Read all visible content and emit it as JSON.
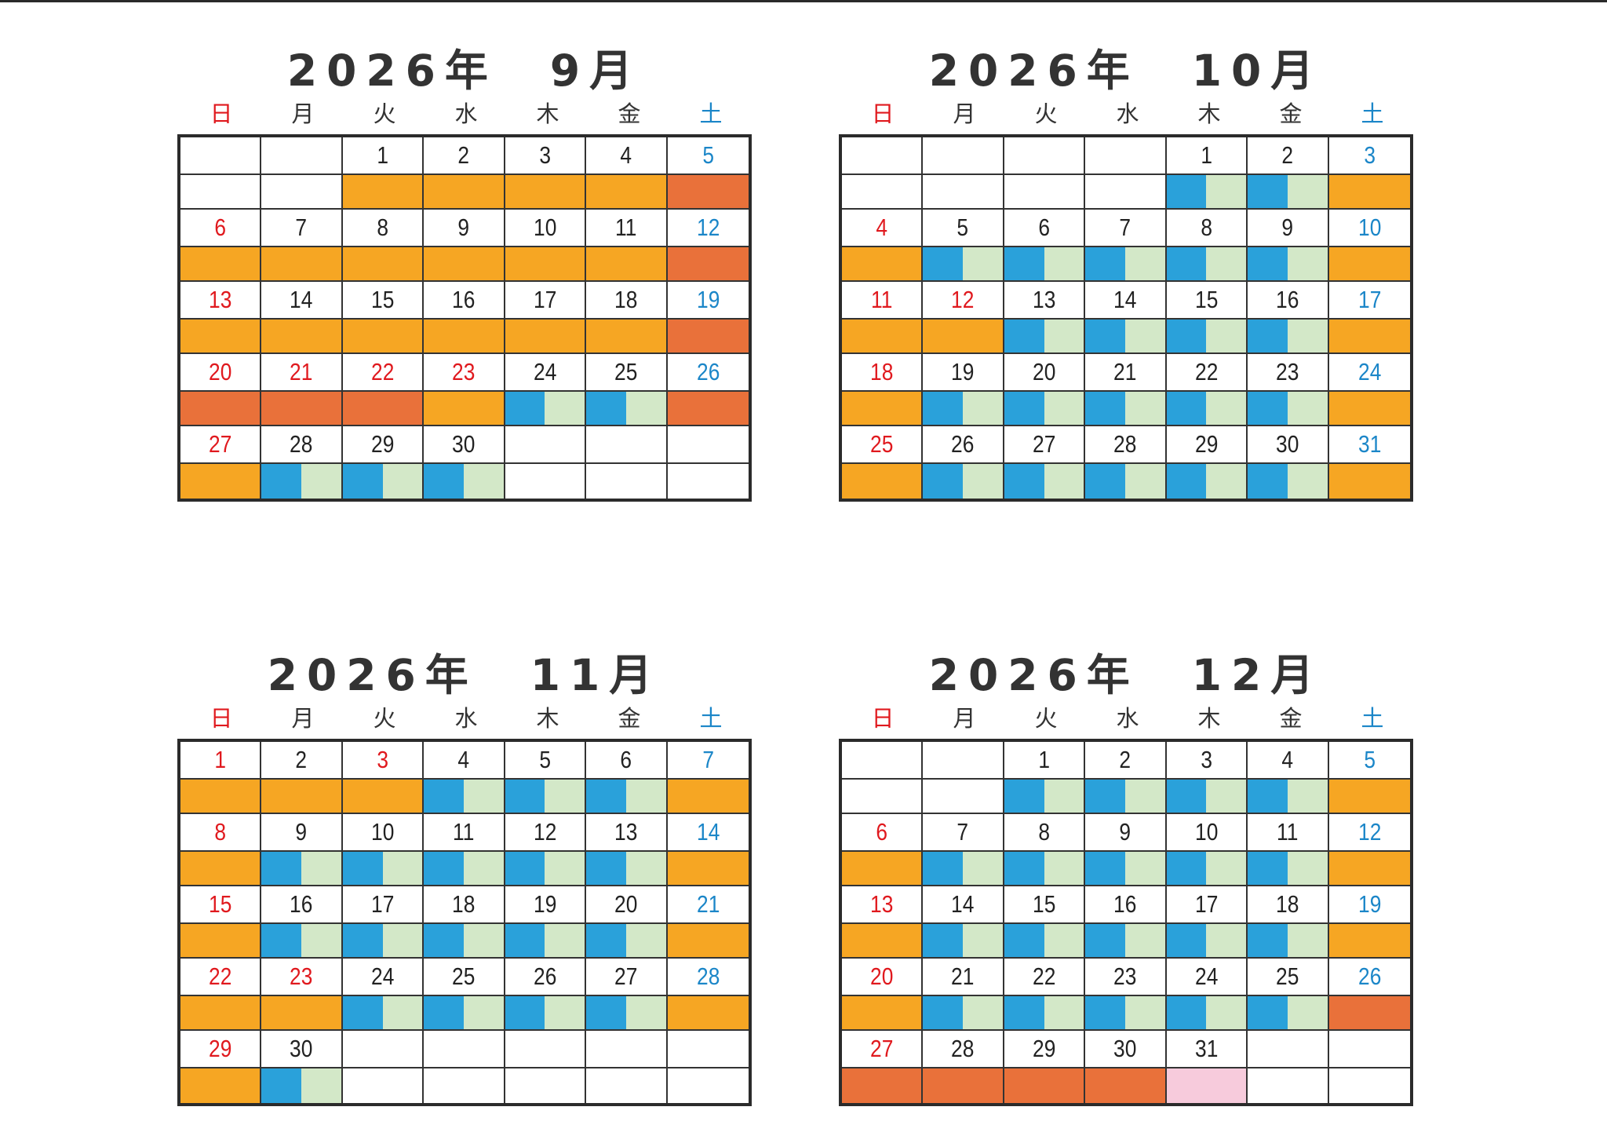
{
  "weekday_labels": [
    "日",
    "月",
    "火",
    "水",
    "木",
    "金",
    "土"
  ],
  "colors": {
    "orange": "#f6a623",
    "dark_orange": "#e9713a",
    "blue": "#2aa1da",
    "light_green": "#d3e8c8",
    "pink": "#f7cbdc",
    "sunday_red": "#e0191e",
    "saturday_blue": "#1b86c8"
  },
  "legend": {
    "orange": "solid orange bar",
    "dark_orange": "solid dark orange bar",
    "split": "left half blue, right half light green",
    "pink": "solid pink bar",
    "empty": "no bar"
  },
  "calendars": [
    {
      "title": "2026年　9月",
      "weeks": [
        [
          {
            "d": "",
            "c": "",
            "b": "empty"
          },
          {
            "d": "",
            "c": "",
            "b": "empty"
          },
          {
            "d": "1",
            "c": "",
            "b": "orange"
          },
          {
            "d": "2",
            "c": "",
            "b": "orange"
          },
          {
            "d": "3",
            "c": "",
            "b": "orange"
          },
          {
            "d": "4",
            "c": "",
            "b": "orange"
          },
          {
            "d": "5",
            "c": "blue",
            "b": "dark_orange"
          }
        ],
        [
          {
            "d": "6",
            "c": "red",
            "b": "orange"
          },
          {
            "d": "7",
            "c": "",
            "b": "orange"
          },
          {
            "d": "8",
            "c": "",
            "b": "orange"
          },
          {
            "d": "9",
            "c": "",
            "b": "orange"
          },
          {
            "d": "10",
            "c": "",
            "b": "orange"
          },
          {
            "d": "11",
            "c": "",
            "b": "orange"
          },
          {
            "d": "12",
            "c": "blue",
            "b": "dark_orange"
          }
        ],
        [
          {
            "d": "13",
            "c": "red",
            "b": "orange"
          },
          {
            "d": "14",
            "c": "",
            "b": "orange"
          },
          {
            "d": "15",
            "c": "",
            "b": "orange"
          },
          {
            "d": "16",
            "c": "",
            "b": "orange"
          },
          {
            "d": "17",
            "c": "",
            "b": "orange"
          },
          {
            "d": "18",
            "c": "",
            "b": "orange"
          },
          {
            "d": "19",
            "c": "blue",
            "b": "dark_orange"
          }
        ],
        [
          {
            "d": "20",
            "c": "red",
            "b": "dark_orange"
          },
          {
            "d": "21",
            "c": "red",
            "b": "dark_orange"
          },
          {
            "d": "22",
            "c": "red",
            "b": "dark_orange"
          },
          {
            "d": "23",
            "c": "red",
            "b": "orange"
          },
          {
            "d": "24",
            "c": "",
            "b": "split"
          },
          {
            "d": "25",
            "c": "",
            "b": "split"
          },
          {
            "d": "26",
            "c": "blue",
            "b": "dark_orange"
          }
        ],
        [
          {
            "d": "27",
            "c": "red",
            "b": "orange"
          },
          {
            "d": "28",
            "c": "",
            "b": "split"
          },
          {
            "d": "29",
            "c": "",
            "b": "split"
          },
          {
            "d": "30",
            "c": "",
            "b": "split"
          },
          {
            "d": "",
            "c": "",
            "b": "empty"
          },
          {
            "d": "",
            "c": "",
            "b": "empty"
          },
          {
            "d": "",
            "c": "",
            "b": "empty"
          }
        ]
      ]
    },
    {
      "title": "2026年　10月",
      "weeks": [
        [
          {
            "d": "",
            "c": "",
            "b": "empty"
          },
          {
            "d": "",
            "c": "",
            "b": "empty"
          },
          {
            "d": "",
            "c": "",
            "b": "empty"
          },
          {
            "d": "",
            "c": "",
            "b": "empty"
          },
          {
            "d": "1",
            "c": "",
            "b": "split"
          },
          {
            "d": "2",
            "c": "",
            "b": "split"
          },
          {
            "d": "3",
            "c": "blue",
            "b": "orange"
          }
        ],
        [
          {
            "d": "4",
            "c": "red",
            "b": "orange"
          },
          {
            "d": "5",
            "c": "",
            "b": "split"
          },
          {
            "d": "6",
            "c": "",
            "b": "split"
          },
          {
            "d": "7",
            "c": "",
            "b": "split"
          },
          {
            "d": "8",
            "c": "",
            "b": "split"
          },
          {
            "d": "9",
            "c": "",
            "b": "split"
          },
          {
            "d": "10",
            "c": "blue",
            "b": "orange"
          }
        ],
        [
          {
            "d": "11",
            "c": "red",
            "b": "orange"
          },
          {
            "d": "12",
            "c": "red",
            "b": "orange"
          },
          {
            "d": "13",
            "c": "",
            "b": "split"
          },
          {
            "d": "14",
            "c": "",
            "b": "split"
          },
          {
            "d": "15",
            "c": "",
            "b": "split"
          },
          {
            "d": "16",
            "c": "",
            "b": "split"
          },
          {
            "d": "17",
            "c": "blue",
            "b": "orange"
          }
        ],
        [
          {
            "d": "18",
            "c": "red",
            "b": "orange"
          },
          {
            "d": "19",
            "c": "",
            "b": "split"
          },
          {
            "d": "20",
            "c": "",
            "b": "split"
          },
          {
            "d": "21",
            "c": "",
            "b": "split"
          },
          {
            "d": "22",
            "c": "",
            "b": "split"
          },
          {
            "d": "23",
            "c": "",
            "b": "split"
          },
          {
            "d": "24",
            "c": "blue",
            "b": "orange"
          }
        ],
        [
          {
            "d": "25",
            "c": "red",
            "b": "orange"
          },
          {
            "d": "26",
            "c": "",
            "b": "split"
          },
          {
            "d": "27",
            "c": "",
            "b": "split"
          },
          {
            "d": "28",
            "c": "",
            "b": "split"
          },
          {
            "d": "29",
            "c": "",
            "b": "split"
          },
          {
            "d": "30",
            "c": "",
            "b": "split"
          },
          {
            "d": "31",
            "c": "blue",
            "b": "orange"
          }
        ]
      ]
    },
    {
      "title": "2026年　11月",
      "weeks": [
        [
          {
            "d": "1",
            "c": "red",
            "b": "orange"
          },
          {
            "d": "2",
            "c": "",
            "b": "orange"
          },
          {
            "d": "3",
            "c": "red",
            "b": "orange"
          },
          {
            "d": "4",
            "c": "",
            "b": "split"
          },
          {
            "d": "5",
            "c": "",
            "b": "split"
          },
          {
            "d": "6",
            "c": "",
            "b": "split"
          },
          {
            "d": "7",
            "c": "blue",
            "b": "orange"
          }
        ],
        [
          {
            "d": "8",
            "c": "red",
            "b": "orange"
          },
          {
            "d": "9",
            "c": "",
            "b": "split"
          },
          {
            "d": "10",
            "c": "",
            "b": "split"
          },
          {
            "d": "11",
            "c": "",
            "b": "split"
          },
          {
            "d": "12",
            "c": "",
            "b": "split"
          },
          {
            "d": "13",
            "c": "",
            "b": "split"
          },
          {
            "d": "14",
            "c": "blue",
            "b": "orange"
          }
        ],
        [
          {
            "d": "15",
            "c": "red",
            "b": "orange"
          },
          {
            "d": "16",
            "c": "",
            "b": "split"
          },
          {
            "d": "17",
            "c": "",
            "b": "split"
          },
          {
            "d": "18",
            "c": "",
            "b": "split"
          },
          {
            "d": "19",
            "c": "",
            "b": "split"
          },
          {
            "d": "20",
            "c": "",
            "b": "split"
          },
          {
            "d": "21",
            "c": "blue",
            "b": "orange"
          }
        ],
        [
          {
            "d": "22",
            "c": "red",
            "b": "orange"
          },
          {
            "d": "23",
            "c": "red",
            "b": "orange"
          },
          {
            "d": "24",
            "c": "",
            "b": "split"
          },
          {
            "d": "25",
            "c": "",
            "b": "split"
          },
          {
            "d": "26",
            "c": "",
            "b": "split"
          },
          {
            "d": "27",
            "c": "",
            "b": "split"
          },
          {
            "d": "28",
            "c": "blue",
            "b": "orange"
          }
        ],
        [
          {
            "d": "29",
            "c": "red",
            "b": "orange"
          },
          {
            "d": "30",
            "c": "",
            "b": "split"
          },
          {
            "d": "",
            "c": "",
            "b": "empty"
          },
          {
            "d": "",
            "c": "",
            "b": "empty"
          },
          {
            "d": "",
            "c": "",
            "b": "empty"
          },
          {
            "d": "",
            "c": "",
            "b": "empty"
          },
          {
            "d": "",
            "c": "",
            "b": "empty"
          }
        ]
      ]
    },
    {
      "title": "2026年　12月",
      "weeks": [
        [
          {
            "d": "",
            "c": "",
            "b": "empty"
          },
          {
            "d": "",
            "c": "",
            "b": "empty"
          },
          {
            "d": "1",
            "c": "",
            "b": "split"
          },
          {
            "d": "2",
            "c": "",
            "b": "split"
          },
          {
            "d": "3",
            "c": "",
            "b": "split"
          },
          {
            "d": "4",
            "c": "",
            "b": "split"
          },
          {
            "d": "5",
            "c": "blue",
            "b": "orange"
          }
        ],
        [
          {
            "d": "6",
            "c": "red",
            "b": "orange"
          },
          {
            "d": "7",
            "c": "",
            "b": "split"
          },
          {
            "d": "8",
            "c": "",
            "b": "split"
          },
          {
            "d": "9",
            "c": "",
            "b": "split"
          },
          {
            "d": "10",
            "c": "",
            "b": "split"
          },
          {
            "d": "11",
            "c": "",
            "b": "split"
          },
          {
            "d": "12",
            "c": "blue",
            "b": "orange"
          }
        ],
        [
          {
            "d": "13",
            "c": "red",
            "b": "orange"
          },
          {
            "d": "14",
            "c": "",
            "b": "split"
          },
          {
            "d": "15",
            "c": "",
            "b": "split"
          },
          {
            "d": "16",
            "c": "",
            "b": "split"
          },
          {
            "d": "17",
            "c": "",
            "b": "split"
          },
          {
            "d": "18",
            "c": "",
            "b": "split"
          },
          {
            "d": "19",
            "c": "blue",
            "b": "orange"
          }
        ],
        [
          {
            "d": "20",
            "c": "red",
            "b": "orange"
          },
          {
            "d": "21",
            "c": "",
            "b": "split"
          },
          {
            "d": "22",
            "c": "",
            "b": "split"
          },
          {
            "d": "23",
            "c": "",
            "b": "split"
          },
          {
            "d": "24",
            "c": "",
            "b": "split"
          },
          {
            "d": "25",
            "c": "",
            "b": "split"
          },
          {
            "d": "26",
            "c": "blue",
            "b": "dark_orange"
          }
        ],
        [
          {
            "d": "27",
            "c": "red",
            "b": "dark_orange"
          },
          {
            "d": "28",
            "c": "",
            "b": "dark_orange"
          },
          {
            "d": "29",
            "c": "",
            "b": "dark_orange"
          },
          {
            "d": "30",
            "c": "",
            "b": "dark_orange"
          },
          {
            "d": "31",
            "c": "",
            "b": "pink"
          },
          {
            "d": "",
            "c": "",
            "b": "empty"
          },
          {
            "d": "",
            "c": "",
            "b": "empty"
          }
        ]
      ]
    }
  ]
}
